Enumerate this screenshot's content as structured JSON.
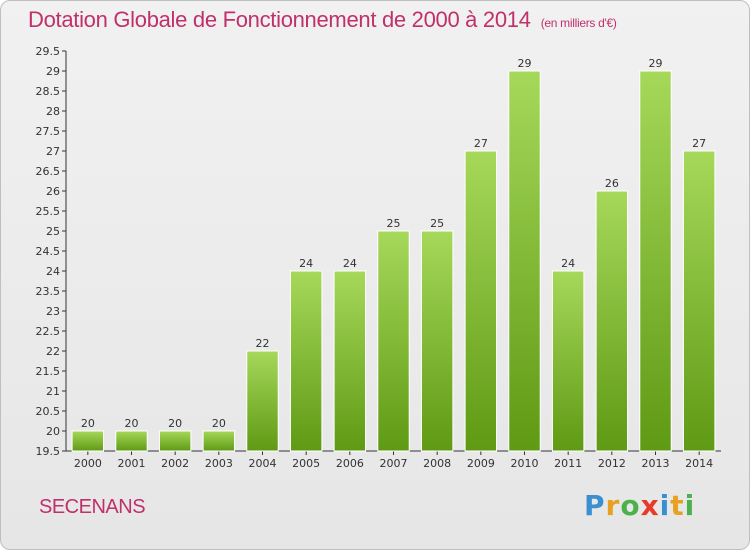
{
  "header": {
    "title": "Dotation Globale de Fonctionnement de 2000 à 2014",
    "unit": "(en milliers d'€)"
  },
  "commune": "SECENANS",
  "brand": "Proxiti",
  "colors": {
    "title": "#c0306a",
    "bar_top": "#a6d85a",
    "bar_bottom": "#5f9a14",
    "axis": "#333333"
  },
  "chart_data": {
    "type": "bar",
    "categories": [
      "2000",
      "2001",
      "2002",
      "2003",
      "2004",
      "2005",
      "2006",
      "2007",
      "2008",
      "2009",
      "2010",
      "2011",
      "2012",
      "2013",
      "2014"
    ],
    "values": [
      20,
      20,
      20,
      20,
      22,
      24,
      24,
      25,
      25,
      27,
      29,
      24,
      26,
      29,
      27
    ],
    "ylim": [
      19.5,
      29.5
    ],
    "yticks": [
      "19.5",
      "20",
      "20.5",
      "21",
      "21.5",
      "22",
      "22.5",
      "23",
      "23.5",
      "24",
      "24.5",
      "25",
      "25.5",
      "26",
      "26.5",
      "27",
      "27.5",
      "28",
      "28.5",
      "29",
      "29.5"
    ],
    "grid": false,
    "data_labels": true
  }
}
